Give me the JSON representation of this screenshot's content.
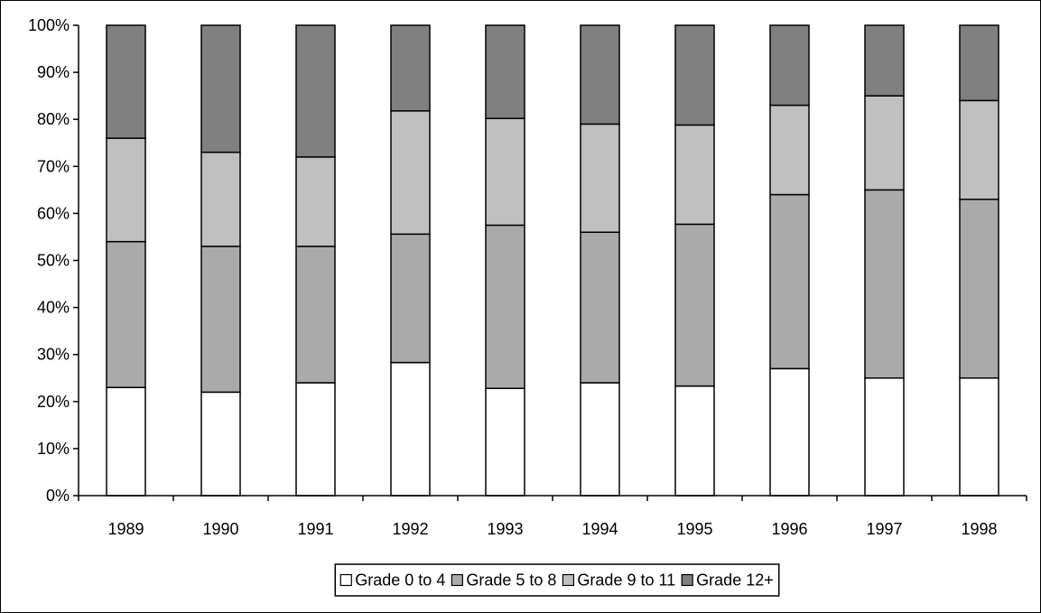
{
  "chart_data": {
    "type": "bar",
    "stacked": "percent",
    "title": "",
    "xlabel": "",
    "ylabel": "",
    "ylim": [
      0,
      100
    ],
    "yticks": [
      "0%",
      "10%",
      "20%",
      "30%",
      "40%",
      "50%",
      "60%",
      "70%",
      "80%",
      "90%",
      "100%"
    ],
    "categories": [
      "1989",
      "1990",
      "1991",
      "1992",
      "1993",
      "1994",
      "1995",
      "1996",
      "1997",
      "1998"
    ],
    "series": [
      {
        "name": "Grade 0 to 4",
        "color": "#ffffff",
        "values": [
          23,
          22,
          24,
          28.3,
          22.8,
          24,
          23.3,
          27,
          25,
          25
        ]
      },
      {
        "name": "Grade 5 to 8",
        "color": "#aaaaaa",
        "values": [
          31,
          31,
          29,
          27.3,
          34.7,
          32,
          34.4,
          37,
          40,
          38
        ]
      },
      {
        "name": "Grade 9 to 11",
        "color": "#c0c0c0",
        "values": [
          22,
          20,
          19,
          26.2,
          22.7,
          23,
          21.1,
          19,
          20,
          21
        ]
      },
      {
        "name": "Grade 12+",
        "color": "#808080",
        "values": [
          24,
          27,
          28,
          18.2,
          19.8,
          21,
          21.2,
          17,
          15,
          16
        ]
      }
    ],
    "grid": false,
    "legend_position": "bottom"
  }
}
